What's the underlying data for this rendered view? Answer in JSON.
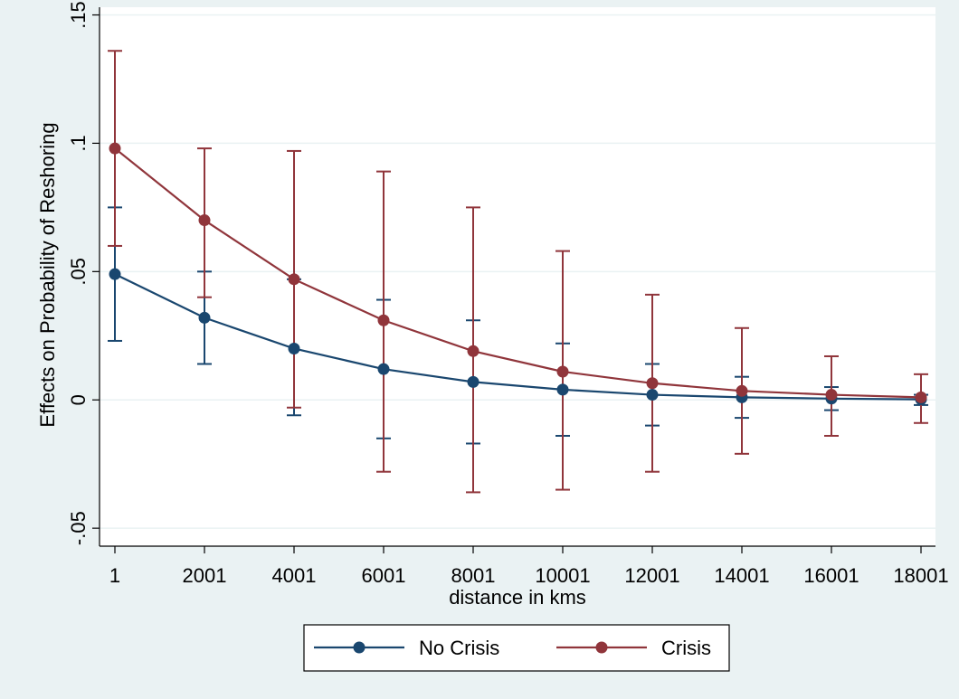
{
  "chart_data": {
    "type": "line",
    "title": "",
    "xlabel": "distance in kms",
    "ylabel": "Effects on Probability of Reshoring",
    "x": [
      1,
      2001,
      4001,
      6001,
      8001,
      10001,
      12001,
      14001,
      16001,
      18001
    ],
    "x_tick_labels": [
      "1",
      "2001",
      "4001",
      "6001",
      "8001",
      "10001",
      "12001",
      "14001",
      "16001",
      "18001"
    ],
    "y_ticks": [
      -0.05,
      0,
      0.05,
      0.1,
      0.15
    ],
    "y_tick_labels": [
      "-.05",
      "0",
      ".05",
      ".1",
      ".15"
    ],
    "ylim": [
      -0.057,
      0.153
    ],
    "grid": true,
    "legend_position": "bottom",
    "series": [
      {
        "name": "No Crisis",
        "color": "#1a476f",
        "values": [
          0.049,
          0.032,
          0.02,
          0.012,
          0.007,
          0.004,
          0.002,
          0.001,
          0.0005,
          0.0002
        ],
        "ci_low": [
          0.023,
          0.014,
          -0.006,
          -0.015,
          -0.017,
          -0.014,
          -0.01,
          -0.007,
          -0.004,
          -0.002
        ],
        "ci_high": [
          0.075,
          0.05,
          0.047,
          0.039,
          0.031,
          0.022,
          0.014,
          0.009,
          0.005,
          0.002
        ]
      },
      {
        "name": "Crisis",
        "color": "#90353b",
        "values": [
          0.098,
          0.07,
          0.047,
          0.031,
          0.019,
          0.011,
          0.0065,
          0.0035,
          0.002,
          0.001
        ],
        "ci_low": [
          0.06,
          0.04,
          -0.003,
          -0.028,
          -0.036,
          -0.035,
          -0.028,
          -0.021,
          -0.014,
          -0.009
        ],
        "ci_high": [
          0.136,
          0.098,
          0.097,
          0.089,
          0.075,
          0.058,
          0.041,
          0.028,
          0.017,
          0.01
        ]
      }
    ]
  }
}
